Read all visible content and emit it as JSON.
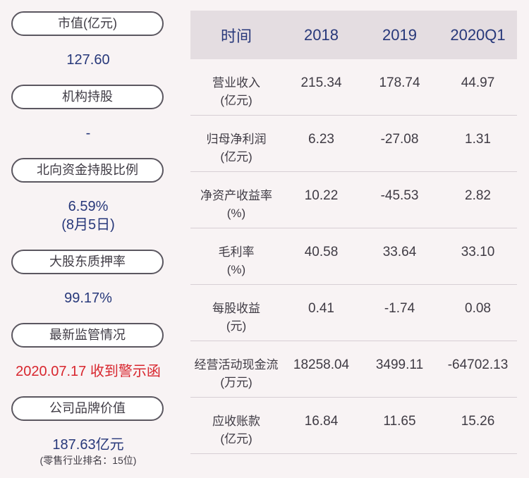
{
  "left": {
    "items": [
      {
        "label": "市值(亿元)",
        "value": "127.60"
      },
      {
        "label": "机构持股",
        "value": "-"
      },
      {
        "label": "北向资金持股比例",
        "value": "6.59%",
        "value2": "(8月5日)"
      },
      {
        "label": "大股东质押率",
        "value": "99.17%"
      },
      {
        "label": "最新监管情况",
        "value": "2020.07.17 收到警示函"
      },
      {
        "label": "公司品牌价值",
        "value": "187.63亿元",
        "note": "(零售行业排名：15位)"
      }
    ]
  },
  "table": {
    "headers": [
      "时间",
      "2018",
      "2019",
      "2020Q1"
    ],
    "rows": [
      {
        "name": "营业收入\n(亿元)",
        "values": [
          "215.34",
          "178.74",
          "44.97"
        ]
      },
      {
        "name": "归母净利润\n(亿元)",
        "values": [
          "6.23",
          "-27.08",
          "1.31"
        ]
      },
      {
        "name": "净资产收益率\n(%)",
        "values": [
          "10.22",
          "-45.53",
          "2.82"
        ]
      },
      {
        "name": "毛利率\n(%)",
        "values": [
          "40.58",
          "33.64",
          "33.10"
        ]
      },
      {
        "name": "每股收益\n(元)",
        "values": [
          "0.41",
          "-1.74",
          "0.08"
        ]
      },
      {
        "name": "经营活动现金流\n(万元)",
        "values": [
          "18258.04",
          "3499.11",
          "-64702.13"
        ]
      },
      {
        "name": "应收账款\n(亿元)",
        "values": [
          "16.84",
          "11.65",
          "15.26"
        ]
      }
    ]
  },
  "colors": {
    "background": "#f8f3f4",
    "accent_blue": "#27387a",
    "alert_red": "#d8262e",
    "header_bg": "#e4dde1"
  }
}
